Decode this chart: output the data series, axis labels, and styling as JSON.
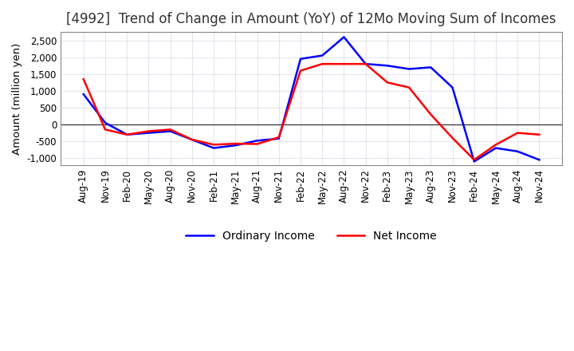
{
  "title": "[4992]  Trend of Change in Amount (YoY) of 12Mo Moving Sum of Incomes",
  "ylabel": "Amount (million yen)",
  "ylim": [
    -1200,
    2750
  ],
  "yticks": [
    -1000,
    -500,
    0,
    500,
    1000,
    1500,
    2000,
    2500
  ],
  "background_color": "#ffffff",
  "grid_color": "#aaaacc",
  "x_labels": [
    "Aug-19",
    "Nov-19",
    "Feb-20",
    "May-20",
    "Aug-20",
    "Nov-20",
    "Feb-21",
    "May-21",
    "Aug-21",
    "Nov-21",
    "Feb-22",
    "May-22",
    "Aug-22",
    "Nov-22",
    "Feb-23",
    "May-23",
    "Aug-23",
    "Nov-23",
    "Feb-24",
    "May-24",
    "Aug-24",
    "Nov-24"
  ],
  "ordinary_income": [
    900,
    50,
    -300,
    -250,
    -200,
    -450,
    -700,
    -620,
    -480,
    -420,
    1950,
    2050,
    2600,
    1800,
    1750,
    1650,
    1700,
    1100,
    -1100,
    -700,
    -800,
    -1050
  ],
  "net_income": [
    1350,
    -150,
    -300,
    -200,
    -150,
    -450,
    -600,
    -570,
    -580,
    -380,
    1600,
    1800,
    1800,
    1800,
    1250,
    1100,
    300,
    -400,
    -1050,
    -600,
    -250,
    -300
  ],
  "ordinary_color": "#0000ff",
  "net_color": "#ff0000",
  "line_width": 1.8,
  "title_fontsize": 12,
  "tick_fontsize": 8.5,
  "legend_fontsize": 10
}
